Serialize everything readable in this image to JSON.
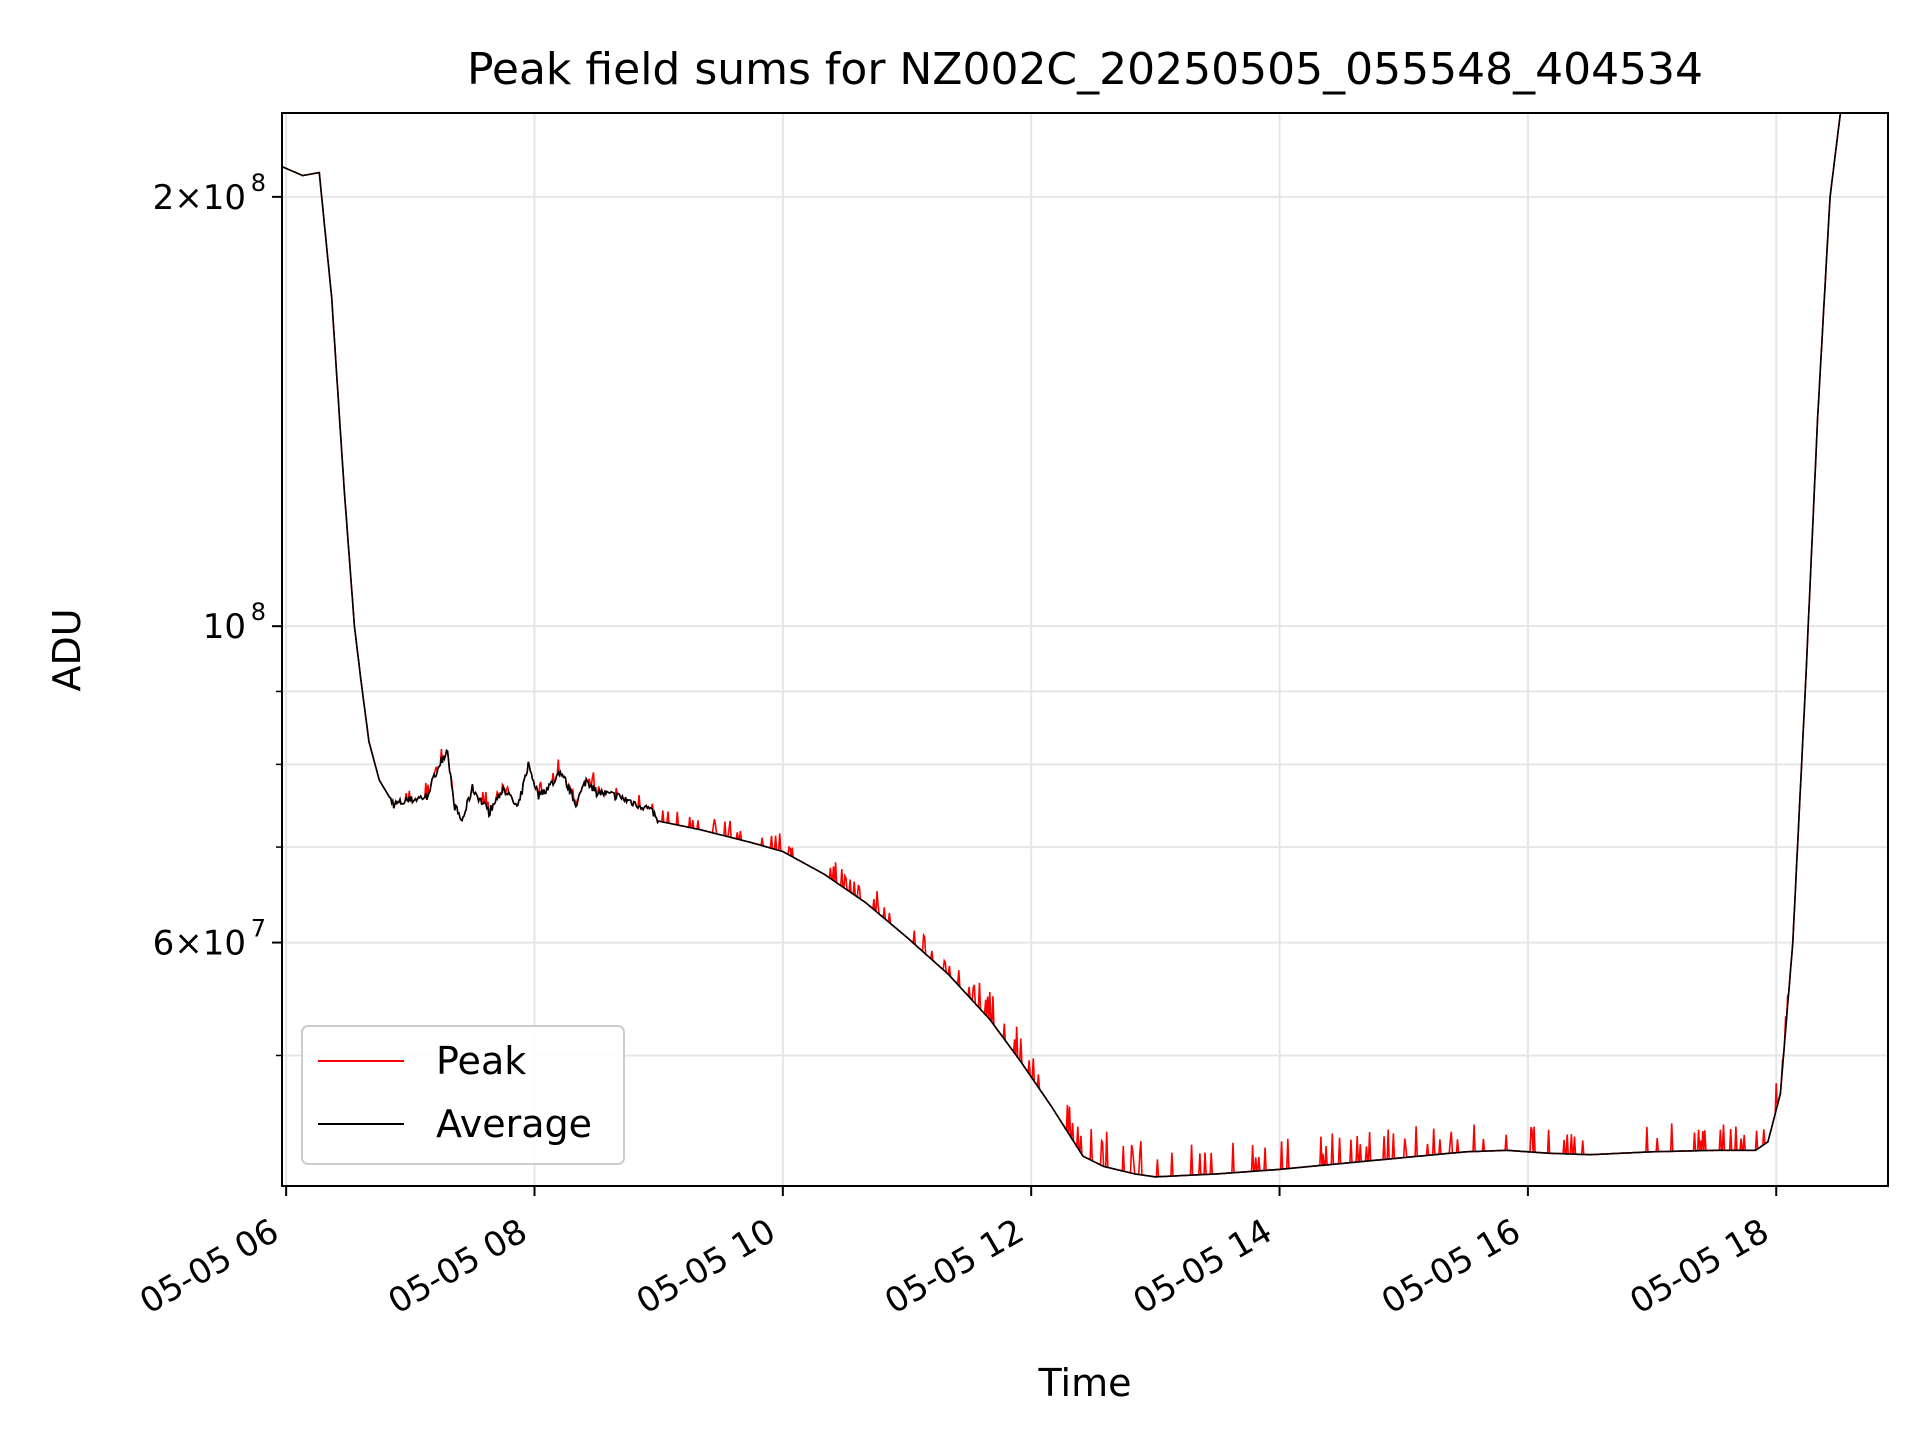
{
  "chart_data": {
    "type": "line",
    "title": "Peak field sums for NZ002C_20250505_055548_404534",
    "xlabel": "Time",
    "ylabel": "ADU",
    "y_scale": "log",
    "grid": true,
    "legend_position": "lower-left",
    "xlim": [
      "05-05 05:58",
      "05-05 18:54"
    ],
    "ylim": [
      40500000,
      229000000
    ],
    "x_ticks": [
      {
        "label": "05-05 06",
        "value": "05-05 06:00"
      },
      {
        "label": "05-05 08",
        "value": "05-05 08:00"
      },
      {
        "label": "05-05 10",
        "value": "05-05 10:00"
      },
      {
        "label": "05-05 12",
        "value": "05-05 12:00"
      },
      {
        "label": "05-05 14",
        "value": "05-05 14:00"
      },
      {
        "label": "05-05 16",
        "value": "05-05 16:00"
      },
      {
        "label": "05-05 18",
        "value": "05-05 18:00"
      }
    ],
    "y_major_ticks": [
      {
        "label_base": "10",
        "label_exp": "8",
        "value": 100000000
      },
      {
        "label_base": "2×10",
        "label_exp": "8",
        "value": 200000000
      },
      {
        "label_base": "6×10",
        "label_exp": "7",
        "value": 60000000
      }
    ],
    "y_minor_ticks": [
      50000000,
      70000000,
      80000000,
      90000000
    ],
    "series": [
      {
        "name": "Peak",
        "color": "#ff0000"
      },
      {
        "name": "Average",
        "color": "#000000"
      }
    ],
    "average_points": [
      [
        "05-05 05:58",
        210000000
      ],
      [
        "05-05 06:08",
        207000000
      ],
      [
        "05-05 06:16",
        208000000
      ],
      [
        "05-05 06:22",
        170000000
      ],
      [
        "05-05 06:28",
        125000000
      ],
      [
        "05-05 06:33",
        100000000
      ],
      [
        "05-05 06:36",
        92000000
      ],
      [
        "05-05 06:40",
        83000000
      ],
      [
        "05-05 06:45",
        78000000
      ],
      [
        "05-05 06:52",
        75000000
      ],
      [
        "05-05 07:00",
        75500000
      ],
      [
        "05-05 07:08",
        76000000
      ],
      [
        "05-05 07:14",
        80000000
      ],
      [
        "05-05 07:18",
        82000000
      ],
      [
        "05-05 07:21",
        75000000
      ],
      [
        "05-05 07:25",
        73000000
      ],
      [
        "05-05 07:30",
        77000000
      ],
      [
        "05-05 07:38",
        74000000
      ],
      [
        "05-05 07:45",
        77000000
      ],
      [
        "05-05 07:52",
        74500000
      ],
      [
        "05-05 07:57",
        80000000
      ],
      [
        "05-05 08:02",
        76000000
      ],
      [
        "05-05 08:08",
        77500000
      ],
      [
        "05-05 08:13",
        79000000
      ],
      [
        "05-05 08:20",
        75000000
      ],
      [
        "05-05 08:25",
        78000000
      ],
      [
        "05-05 08:30",
        76500000
      ],
      [
        "05-05 08:40",
        76000000
      ],
      [
        "05-05 08:55",
        74500000
      ],
      [
        "05-05 09:00",
        73000000
      ],
      [
        "05-05 09:20",
        72000000
      ],
      [
        "05-05 09:45",
        70500000
      ],
      [
        "05-05 10:00",
        69500000
      ],
      [
        "05-05 10:20",
        67000000
      ],
      [
        "05-05 10:40",
        64000000
      ],
      [
        "05-05 11:00",
        60500000
      ],
      [
        "05-05 11:20",
        57000000
      ],
      [
        "05-05 11:40",
        53000000
      ],
      [
        "05-05 11:55",
        49500000
      ],
      [
        "05-05 12:10",
        46000000
      ],
      [
        "05-05 12:25",
        42500000
      ],
      [
        "05-05 12:35",
        41800000
      ],
      [
        "05-05 12:50",
        41300000
      ],
      [
        "05-05 13:00",
        41100000
      ],
      [
        "05-05 13:30",
        41300000
      ],
      [
        "05-05 14:00",
        41600000
      ],
      [
        "05-05 14:30",
        42000000
      ],
      [
        "05-05 15:00",
        42400000
      ],
      [
        "05-05 15:30",
        42800000
      ],
      [
        "05-05 15:50",
        42900000
      ],
      [
        "05-05 16:10",
        42700000
      ],
      [
        "05-05 16:30",
        42600000
      ],
      [
        "05-05 17:00",
        42800000
      ],
      [
        "05-05 17:30",
        42900000
      ],
      [
        "05-05 17:50",
        42900000
      ],
      [
        "05-05 17:56",
        43500000
      ],
      [
        "05-05 18:02",
        47000000
      ],
      [
        "05-05 18:08",
        60000000
      ],
      [
        "05-05 18:14",
        90000000
      ],
      [
        "05-05 18:20",
        140000000
      ],
      [
        "05-05 18:26",
        200000000
      ],
      [
        "05-05 18:31",
        229000000
      ]
    ],
    "peak_offset_points": [
      [
        "05-05 05:58",
        0
      ],
      [
        "05-05 06:45",
        0.0
      ],
      [
        "05-05 07:00",
        0.012
      ],
      [
        "05-05 08:00",
        0.018
      ],
      [
        "05-05 09:00",
        0.015
      ],
      [
        "05-05 10:00",
        0.02
      ],
      [
        "05-05 11:00",
        0.025
      ],
      [
        "05-05 12:00",
        0.035
      ],
      [
        "05-05 12:40",
        0.04
      ],
      [
        "05-05 14:00",
        0.035
      ],
      [
        "05-05 16:00",
        0.032
      ],
      [
        "05-05 18:00",
        0.03
      ],
      [
        "05-05 18:10",
        0.0
      ],
      [
        "05-05 18:54",
        0.0
      ]
    ]
  }
}
